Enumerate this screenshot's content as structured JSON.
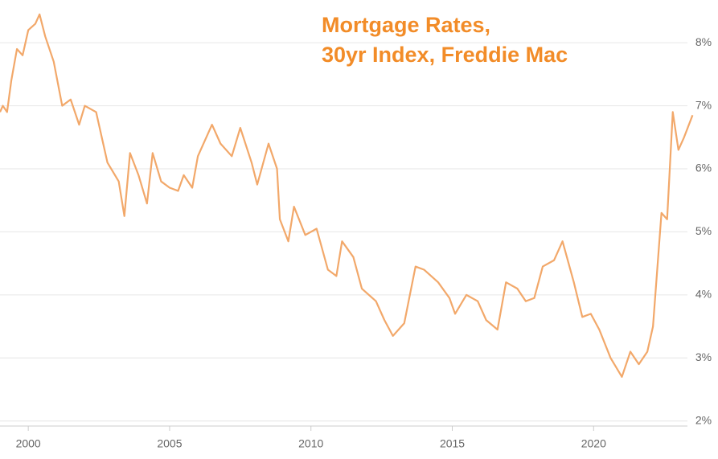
{
  "chart_data": {
    "type": "line",
    "title_lines": [
      "Mortgage Rates,",
      "30yr Index, Freddie Mac"
    ],
    "x": [
      1999.0,
      1999.1,
      1999.25,
      1999.4,
      1999.6,
      1999.8,
      2000.0,
      2000.25,
      2000.4,
      2000.6,
      2000.9,
      2001.2,
      2001.5,
      2001.8,
      2002.0,
      2002.4,
      2002.8,
      2003.2,
      2003.4,
      2003.6,
      2003.9,
      2004.2,
      2004.4,
      2004.7,
      2005.0,
      2005.3,
      2005.5,
      2005.8,
      2006.0,
      2006.5,
      2006.8,
      2007.2,
      2007.5,
      2007.9,
      2008.1,
      2008.5,
      2008.8,
      2008.9,
      2009.2,
      2009.4,
      2009.8,
      2010.2,
      2010.6,
      2010.9,
      2011.1,
      2011.5,
      2011.8,
      2012.3,
      2012.6,
      2012.9,
      2013.3,
      2013.7,
      2014.0,
      2014.5,
      2014.9,
      2015.1,
      2015.5,
      2015.9,
      2016.2,
      2016.6,
      2016.9,
      2017.3,
      2017.6,
      2017.9,
      2018.2,
      2018.6,
      2018.9,
      2019.3,
      2019.6,
      2019.9,
      2020.2,
      2020.6,
      2021.0,
      2021.3,
      2021.6,
      2021.9,
      2022.1,
      2022.4,
      2022.6,
      2022.8,
      2023.0,
      2023.2,
      2023.5
    ],
    "values": [
      6.9,
      7.0,
      6.9,
      7.4,
      7.9,
      7.8,
      8.2,
      8.3,
      8.45,
      8.1,
      7.7,
      7.0,
      7.1,
      6.7,
      7.0,
      6.9,
      6.1,
      5.8,
      5.25,
      6.25,
      5.9,
      5.45,
      6.25,
      5.8,
      5.7,
      5.65,
      5.9,
      5.7,
      6.2,
      6.7,
      6.4,
      6.2,
      6.65,
      6.1,
      5.75,
      6.4,
      6.0,
      5.2,
      4.85,
      5.4,
      4.95,
      5.05,
      4.4,
      4.3,
      4.85,
      4.6,
      4.1,
      3.9,
      3.6,
      3.35,
      3.55,
      4.45,
      4.4,
      4.2,
      3.95,
      3.7,
      4.0,
      3.9,
      3.6,
      3.45,
      4.2,
      4.1,
      3.9,
      3.95,
      4.45,
      4.55,
      4.85,
      4.2,
      3.65,
      3.7,
      3.45,
      3.0,
      2.7,
      3.1,
      2.9,
      3.1,
      3.5,
      5.3,
      5.2,
      6.9,
      6.3,
      6.5,
      6.85
    ],
    "color": "#f2a86a",
    "xlim": [
      1999,
      2024.4
    ],
    "xticks": [
      2000,
      2005,
      2010,
      2015,
      2020
    ],
    "ylim": [
      1.92,
      8.55
    ],
    "yticks": [
      {
        "value": 2,
        "label": "2%"
      },
      {
        "value": 3,
        "label": "3%"
      },
      {
        "value": 4,
        "label": "4%"
      },
      {
        "value": 5,
        "label": "5%"
      },
      {
        "value": 6,
        "label": "6%"
      },
      {
        "value": 7,
        "label": "7%"
      },
      {
        "value": 8,
        "label": "8%"
      }
    ],
    "grid": true
  }
}
